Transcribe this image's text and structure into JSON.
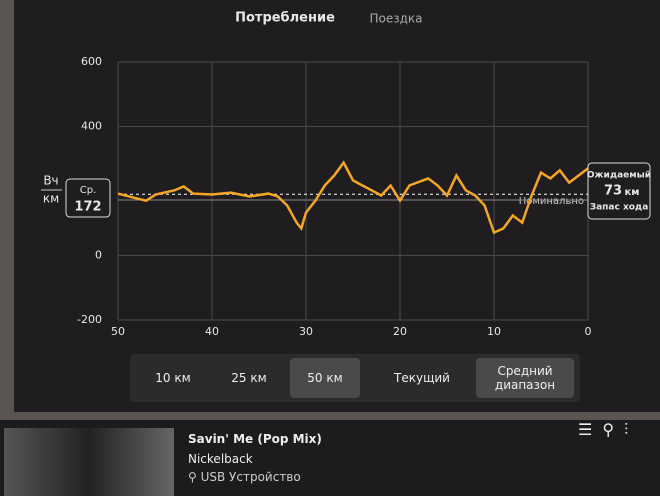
{
  "tabs": [
    "Потребление",
    "Поездка"
  ],
  "chart_data": {
    "type": "line",
    "y_label_top": "Вч",
    "y_label_bottom": "км",
    "x": [
      50,
      48,
      47,
      46,
      44,
      43,
      42,
      40,
      38,
      36,
      34,
      33,
      32,
      31,
      30.5,
      30,
      29,
      28,
      27,
      26,
      25,
      24,
      23,
      22,
      21,
      20,
      19,
      17,
      16,
      15,
      14,
      13,
      12,
      11,
      10,
      9,
      8,
      7,
      6,
      5,
      4,
      3,
      2,
      1,
      0
    ],
    "values": [
      192,
      177,
      170,
      189,
      202,
      214,
      192,
      189,
      195,
      183,
      192,
      183,
      155,
      102,
      84,
      133,
      170,
      217,
      248,
      288,
      233,
      217,
      202,
      186,
      217,
      170,
      217,
      239,
      217,
      186,
      248,
      202,
      186,
      155,
      71,
      84,
      124,
      102,
      186,
      257,
      239,
      264,
      226,
      248,
      270
    ],
    "color": "#f5a623",
    "xlim": [
      50,
      0
    ],
    "xticks": [
      50,
      40,
      30,
      20,
      10,
      0
    ],
    "ylim": [
      -200,
      600
    ],
    "yticks": [
      -200,
      0,
      400,
      600
    ],
    "grid": true,
    "average": {
      "label": "Ср.",
      "value": 172
    },
    "nominal": {
      "label": "Номинально",
      "value": 190
    },
    "projection": {
      "label_top": "Ожидаемый",
      "value": 73,
      "unit": "км",
      "label_bottom": "Запас хода"
    }
  },
  "range_buttons": [
    "10 км",
    "25 км",
    "50 км"
  ],
  "mode_buttons": [
    "Текущий",
    "Средний диапазон"
  ],
  "media": {
    "title": "Savin' Me (Pop Mix)",
    "artist": "Nickelback",
    "source": "USB Устройство"
  }
}
